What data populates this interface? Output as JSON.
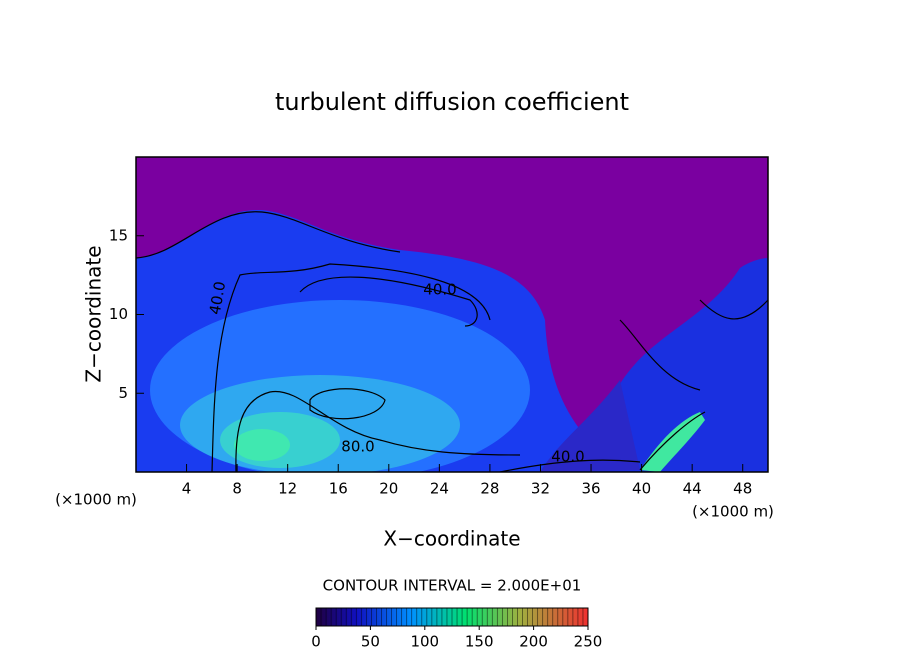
{
  "chart_data": {
    "type": "contour",
    "title": "turbulent diffusion coefficient",
    "x_label": "X−coordinate",
    "y_label": "Z−coordinate",
    "x_unit_label": "(×1000 m)",
    "xlim": [
      0,
      50
    ],
    "xticks": [
      4,
      8,
      12,
      16,
      20,
      24,
      28,
      32,
      36,
      40,
      44,
      48
    ],
    "ylim": [
      0,
      20
    ],
    "yticks": [
      5,
      10,
      15
    ],
    "contour_labels": [
      {
        "value": 40,
        "label": "40.0"
      },
      {
        "value": 40,
        "label": "40.0"
      },
      {
        "value": 80,
        "label": "80.0"
      },
      {
        "value": 40,
        "label": "40.0"
      }
    ],
    "contour_interval_text": "CONTOUR INTERVAL = 2.000E+01",
    "colorbar": {
      "lim": [
        0,
        250
      ],
      "ticks": [
        0,
        50,
        100,
        150,
        200,
        250
      ]
    }
  }
}
